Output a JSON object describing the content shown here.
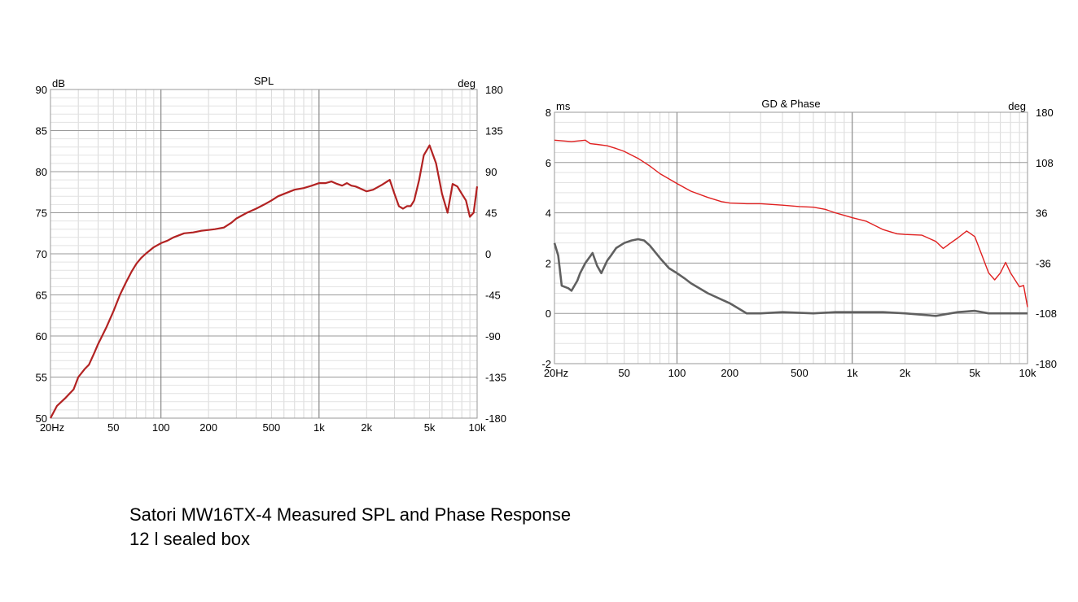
{
  "chart_data": [
    {
      "type": "line",
      "title": "SPL",
      "y_unit": "dB",
      "y2_unit": "deg",
      "x_scale": "log",
      "xlim": [
        20,
        10000
      ],
      "ylim": [
        50,
        90
      ],
      "y2lim": [
        -180,
        180
      ],
      "grid": true,
      "x_tick_values": [
        20,
        50,
        100,
        200,
        500,
        1000,
        2000,
        5000,
        10000
      ],
      "x_tick_labels": [
        "20Hz",
        "50",
        "100",
        "200",
        "500",
        "1k",
        "2k",
        "5k",
        "10k"
      ],
      "y_ticks": [
        "90",
        "85",
        "80",
        "75",
        "70",
        "65",
        "60",
        "55",
        "50"
      ],
      "y2_ticks": [
        "180",
        "135",
        "90",
        "45",
        "0",
        "-45",
        "-90",
        "-135",
        "-180"
      ],
      "series": [
        {
          "color": "#b22222",
          "x": [
            20,
            22,
            25,
            28,
            30,
            33,
            35,
            38,
            40,
            45,
            50,
            55,
            60,
            65,
            70,
            75,
            80,
            90,
            100,
            110,
            120,
            140,
            160,
            180,
            200,
            220,
            250,
            280,
            300,
            350,
            400,
            450,
            500,
            550,
            600,
            700,
            800,
            900,
            1000,
            1100,
            1200,
            1300,
            1400,
            1500,
            1600,
            1700,
            1800,
            2000,
            2200,
            2500,
            2800,
            3000,
            3200,
            3400,
            3600,
            3800,
            4000,
            4300,
            4600,
            5000,
            5500,
            6000,
            6500,
            7000,
            7500,
            8000,
            8500,
            9000,
            9500,
            10000
          ],
          "values": [
            50,
            51.5,
            52.5,
            53.5,
            55,
            56,
            56.5,
            58,
            59,
            61,
            63,
            65,
            66.5,
            67.8,
            68.8,
            69.5,
            70,
            70.8,
            71.3,
            71.6,
            72,
            72.5,
            72.6,
            72.8,
            72.9,
            73,
            73.2,
            73.8,
            74.3,
            75,
            75.5,
            76,
            76.5,
            77,
            77.3,
            77.8,
            78,
            78.3,
            78.6,
            78.6,
            78.8,
            78.5,
            78.3,
            78.6,
            78.3,
            78.2,
            78,
            77.6,
            77.8,
            78.4,
            79,
            77.3,
            75.8,
            75.5,
            75.8,
            75.8,
            76.5,
            79,
            82,
            83.2,
            81,
            77.3,
            75,
            78.5,
            78.2,
            77.3,
            76.5,
            74.5,
            75,
            78.2
          ]
        }
      ]
    },
    {
      "type": "line",
      "title": "GD & Phase",
      "y_unit": "ms",
      "y2_unit": "deg",
      "x_scale": "log",
      "xlim": [
        20,
        10000
      ],
      "ylim": [
        -2,
        8
      ],
      "y2lim": [
        -180,
        180
      ],
      "grid": true,
      "x_tick_values": [
        20,
        50,
        100,
        200,
        500,
        1000,
        2000,
        5000,
        10000
      ],
      "x_tick_labels": [
        "20Hz",
        "50",
        "100",
        "200",
        "500",
        "1k",
        "2k",
        "5k",
        "10k"
      ],
      "y_ticks": [
        "8",
        "6",
        "4",
        "2",
        "0",
        "-2"
      ],
      "y2_ticks": [
        "180",
        "108",
        "36",
        "-36",
        "-108",
        "-180"
      ],
      "series": [
        {
          "color": "#e02020",
          "axis": "right",
          "x": [
            20,
            25,
            30,
            32,
            35,
            40,
            45,
            50,
            60,
            70,
            80,
            100,
            120,
            150,
            180,
            200,
            250,
            300,
            400,
            500,
            600,
            700,
            800,
            1000,
            1200,
            1500,
            1800,
            2000,
            2500,
            3000,
            3300,
            3600,
            4000,
            4500,
            5000,
            5500,
            6000,
            6500,
            7000,
            7500,
            8000,
            9000,
            9500,
            10000
          ],
          "values": [
            140,
            138,
            140,
            135,
            134,
            132,
            128,
            124,
            114,
            103,
            92,
            78,
            67,
            58,
            52,
            50,
            49,
            49,
            47,
            45,
            44,
            41,
            36,
            29,
            24,
            12,
            6,
            5,
            4,
            -5,
            -15,
            -8,
            0,
            10,
            2,
            -25,
            -50,
            -60,
            -50,
            -35,
            -50,
            -70,
            -68,
            -99
          ]
        },
        {
          "color": "#606060",
          "axis": "left",
          "x": [
            20,
            21,
            22,
            24,
            25,
            27,
            28,
            30,
            33,
            35,
            37,
            40,
            42,
            45,
            50,
            55,
            60,
            65,
            70,
            80,
            90,
            100,
            110,
            120,
            150,
            200,
            250,
            300,
            400,
            600,
            800,
            1000,
            1500,
            2000,
            3000,
            4000,
            5000,
            6000,
            8000,
            10000
          ],
          "values": [
            2.8,
            2.3,
            1.1,
            1.0,
            0.9,
            1.3,
            1.6,
            2.0,
            2.4,
            1.9,
            1.6,
            2.1,
            2.3,
            2.6,
            2.8,
            2.9,
            2.95,
            2.9,
            2.7,
            2.2,
            1.8,
            1.6,
            1.4,
            1.2,
            0.8,
            0.4,
            0.0,
            0.0,
            0.05,
            0.0,
            0.05,
            0.05,
            0.05,
            0.0,
            -0.1,
            0.05,
            0.1,
            0.0,
            0.0,
            0.0
          ]
        }
      ]
    }
  ],
  "caption": {
    "line1": "Satori MW16TX-4 Measured SPL and Phase Response",
    "line2": "12 l sealed box"
  }
}
